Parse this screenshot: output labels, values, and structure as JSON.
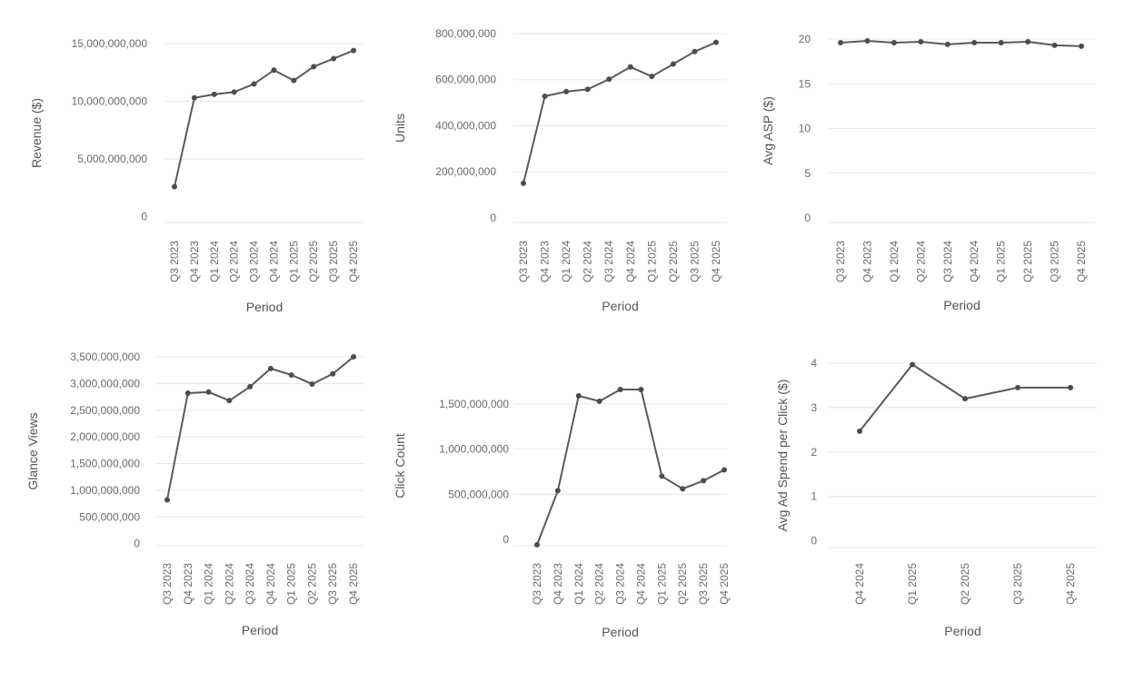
{
  "chart_data": [
    {
      "type": "line",
      "xlabel": "Period",
      "ylabel": "Revenue ($)",
      "categories": [
        "Q3 2023",
        "Q4 2023",
        "Q1 2024",
        "Q2 2024",
        "Q3 2024",
        "Q4 2024",
        "Q1 2025",
        "Q2 2025",
        "Q3 2025",
        "Q4 2025"
      ],
      "values": [
        2600000000,
        10300000000,
        10600000000,
        10800000000,
        11500000000,
        12700000000,
        11800000000,
        13000000000,
        13700000000,
        14400000000
      ],
      "yticks": [
        0,
        5000000000,
        10000000000,
        15000000000
      ],
      "ytick_labels": [
        "0",
        "5,000,000,000",
        "10,000,000,000",
        "15,000,000,000"
      ],
      "ylim": [
        -500000000,
        15000000000
      ],
      "grid": true
    },
    {
      "type": "line",
      "xlabel": "Period",
      "ylabel": "Units",
      "categories": [
        "Q3 2023",
        "Q4 2023",
        "Q1 2024",
        "Q2 2024",
        "Q3 2024",
        "Q4 2024",
        "Q1 2025",
        "Q2 2025",
        "Q3 2025",
        "Q4 2025"
      ],
      "values": [
        150000000,
        528000000,
        548000000,
        558000000,
        602000000,
        655000000,
        614000000,
        668000000,
        722000000,
        762000000
      ],
      "yticks": [
        0,
        200000000,
        400000000,
        600000000,
        800000000
      ],
      "ytick_labels": [
        "0",
        "200,000,000",
        "400,000,000",
        "600,000,000",
        "800,000,000"
      ],
      "ylim": [
        -20000000,
        800000000
      ],
      "grid": true
    },
    {
      "type": "line",
      "xlabel": "Period",
      "ylabel": "Avg ASP ($)",
      "categories": [
        "Q3 2023",
        "Q4 2023",
        "Q1 2024",
        "Q2 2024",
        "Q3 2024",
        "Q4 2024",
        "Q1 2025",
        "Q2 2025",
        "Q3 2025",
        "Q4 2025"
      ],
      "values": [
        19.6,
        19.8,
        19.6,
        19.7,
        19.4,
        19.6,
        19.6,
        19.7,
        19.3,
        19.2
      ],
      "yticks": [
        0,
        5,
        10,
        15,
        20
      ],
      "ytick_labels": [
        "0",
        "5",
        "10",
        "15",
        "20"
      ],
      "ylim": [
        -0.5,
        20
      ],
      "grid": true
    },
    {
      "type": "line",
      "xlabel": "Period",
      "ylabel": "Glance Views",
      "categories": [
        "Q3 2023",
        "Q4 2023",
        "Q1 2024",
        "Q2 2024",
        "Q3 2024",
        "Q4 2024",
        "Q1 2025",
        "Q2 2025",
        "Q3 2025",
        "Q4 2025"
      ],
      "values": [
        820000000,
        2820000000,
        2840000000,
        2680000000,
        2940000000,
        3280000000,
        3160000000,
        2990000000,
        3180000000,
        3500000000
      ],
      "yticks": [
        0,
        500000000,
        1000000000,
        1500000000,
        2000000000,
        2500000000,
        3000000000,
        3500000000
      ],
      "ytick_labels": [
        "0",
        "500,000,000",
        "1,000,000,000",
        "1,500,000,000",
        "2,000,000,000",
        "2,500,000,000",
        "3,000,000,000",
        "3,500,000,000"
      ],
      "ylim": [
        -40000000,
        3500000000
      ],
      "grid": true
    },
    {
      "type": "line",
      "xlabel": "Period",
      "ylabel": "Click Count",
      "categories": [
        "Q3 2023",
        "Q4 2023",
        "Q1 2024",
        "Q2 2024",
        "Q3 2024",
        "Q4 2024",
        "Q1 2025",
        "Q2 2025",
        "Q3 2025",
        "Q4 2025"
      ],
      "values": [
        -60000000,
        540000000,
        1590000000,
        1530000000,
        1660000000,
        1660000000,
        700000000,
        560000000,
        650000000,
        770000000
      ],
      "yticks": [
        0,
        500000000,
        1000000000,
        1500000000
      ],
      "ytick_labels": [
        "0",
        "500,000,000",
        "1,000,000,000",
        "1,500,000,000"
      ],
      "ylim": [
        -70000000,
        1700000000
      ],
      "grid": true
    },
    {
      "type": "line",
      "xlabel": "Period",
      "ylabel": "Avg Ad Spend per Click ($)",
      "categories": [
        "Q4 2024",
        "Q1 2025",
        "Q2 2025",
        "Q3 2025",
        "Q4 2025"
      ],
      "values": [
        2.47,
        3.97,
        3.2,
        3.45,
        3.45
      ],
      "yticks": [
        0,
        1,
        2,
        3,
        4
      ],
      "ytick_labels": [
        "0",
        "1",
        "2",
        "3",
        "4"
      ],
      "ylim": [
        -0.15,
        4
      ],
      "grid": true
    }
  ]
}
